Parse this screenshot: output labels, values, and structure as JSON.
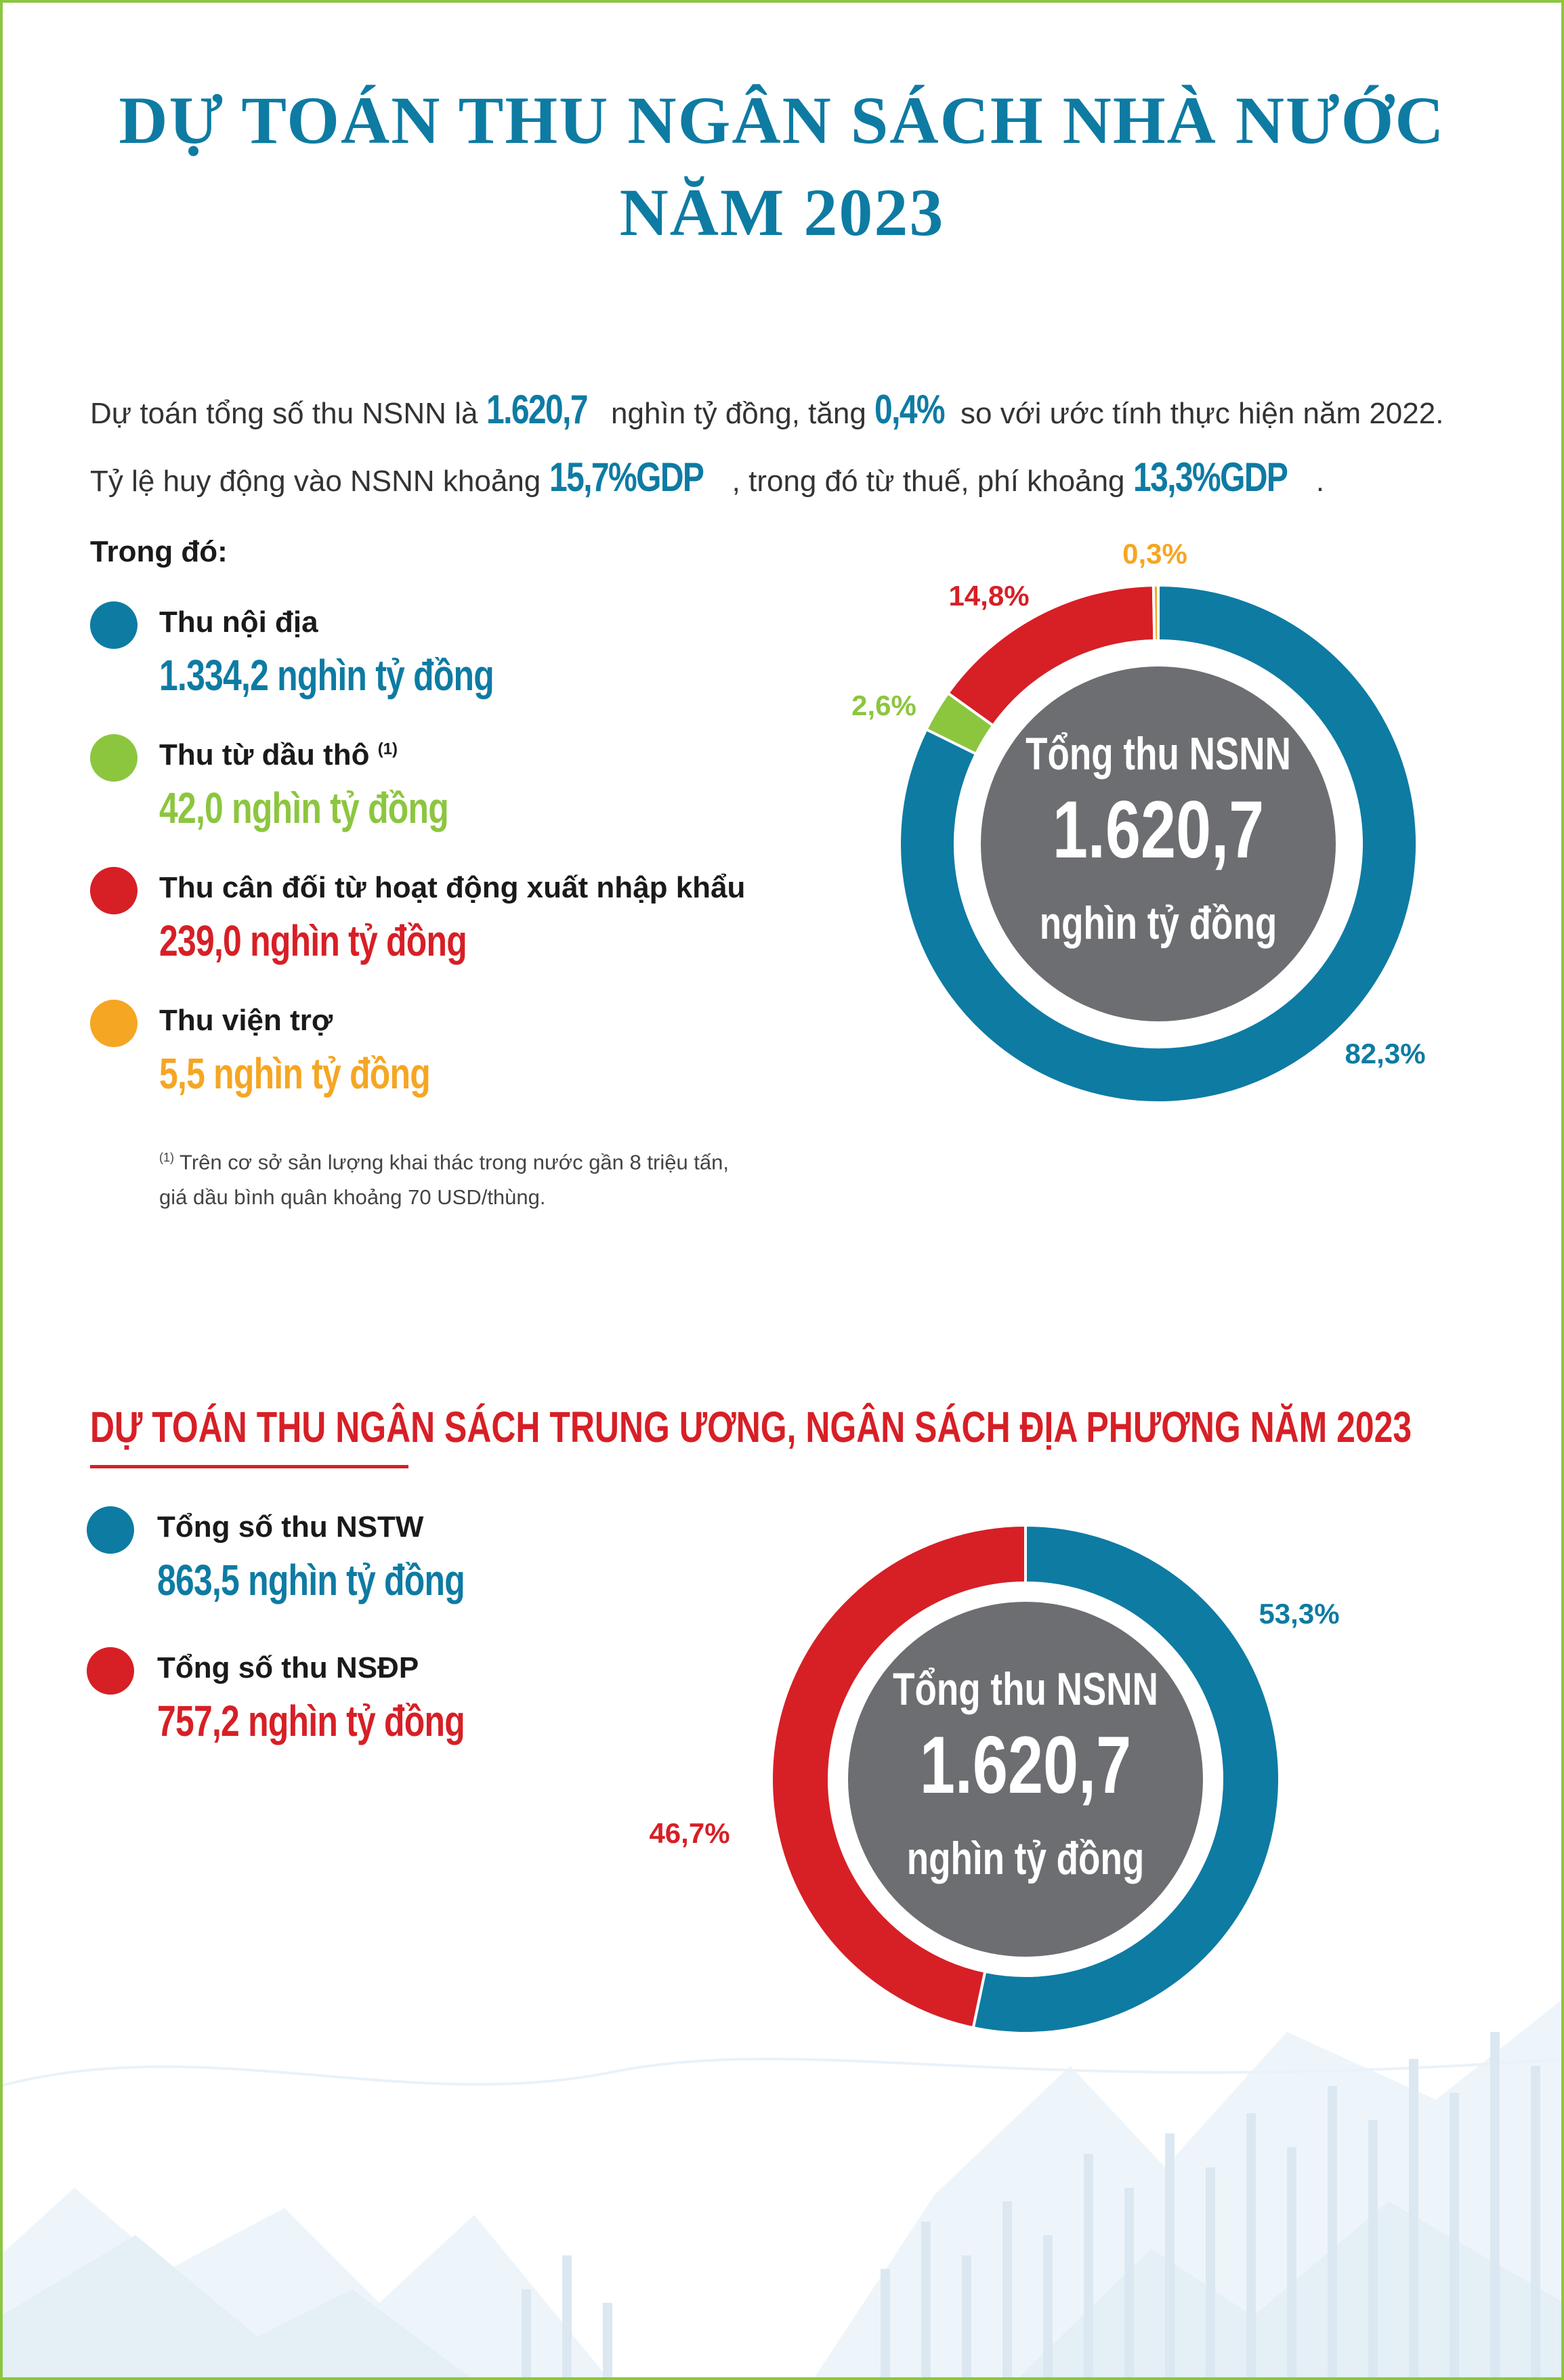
{
  "title": {
    "line1": "DỰ TOÁN THU NGÂN SÁCH NHÀ NƯỚC",
    "line2": "NĂM 2023"
  },
  "intro": {
    "line1_a": "Dự toán tổng số thu NSNN là ",
    "line1_v1": "1.620,7",
    "line1_b": " nghìn tỷ đồng, tăng ",
    "line1_v2": "0,4%",
    "line1_c": " so với ước tính thực hiện năm 2022.",
    "line2_a": "Tỷ lệ huy động vào NSNN khoảng ",
    "line2_v1": "15,7%GDP",
    "line2_b": ", trong đó từ thuế, phí khoảng ",
    "line2_v2": "13,3%GDP",
    "line2_c": "."
  },
  "breakdown": {
    "heading": "Trong đó:",
    "items": [
      {
        "label": "Thu nội địa",
        "value": "1.334,2 nghìn tỷ đồng",
        "color": "#0e7ba3",
        "note_ref": ""
      },
      {
        "label": "Thu từ dầu thô",
        "value": "42,0 nghìn tỷ đồng",
        "color": "#8cc63f",
        "note_ref": "(1)"
      },
      {
        "label": "Thu cân đối từ hoạt động xuất nhập khẩu",
        "value": "239,0 nghìn tỷ đồng",
        "color": "#d71f26",
        "note_ref": ""
      },
      {
        "label": "Thu viện trợ",
        "value": "5,5 nghìn tỷ đồng",
        "color": "#f5a623",
        "note_ref": ""
      }
    ],
    "footnote_ref": "(1)",
    "footnote_line1": " Trên cơ sở sản lượng khai thác trong nước gần 8 triệu tấn,",
    "footnote_line2": "giá dầu bình quân khoảng 70 USD/thùng."
  },
  "section2": {
    "heading": "DỰ TOÁN THU NGÂN SÁCH TRUNG ƯƠNG, NGÂN SÁCH ĐỊA PHƯƠNG NĂM 2023",
    "items": [
      {
        "label": "Tổng số thu NSTW",
        "value": "863,5 nghìn tỷ đồng",
        "color": "#0e7ba3"
      },
      {
        "label": "Tổng số thu NSĐP",
        "value": "757,2 nghìn tỷ đồng",
        "color": "#d71f26"
      }
    ]
  },
  "chart_data": [
    {
      "type": "pie",
      "center_text": [
        "Tổng thu NSNN",
        "1.620,7",
        "nghìn tỷ đồng"
      ],
      "slices": [
        {
          "value": 82.3,
          "label": "82,3%",
          "color": "#0e7ba3"
        },
        {
          "value": 2.6,
          "label": "2,6%",
          "color": "#8cc63f"
        },
        {
          "value": 14.8,
          "label": "14,8%",
          "color": "#d71f26"
        },
        {
          "value": 0.3,
          "label": "0,3%",
          "color": "#f5a623"
        }
      ]
    },
    {
      "type": "pie",
      "center_text": [
        "Tổng thu NSNN",
        "1.620,7",
        "nghìn tỷ đồng"
      ],
      "slices": [
        {
          "value": 53.3,
          "label": "53,3%",
          "color": "#0e7ba3"
        },
        {
          "value": 46.7,
          "label": "46,7%",
          "color": "#d71f26"
        }
      ]
    }
  ]
}
